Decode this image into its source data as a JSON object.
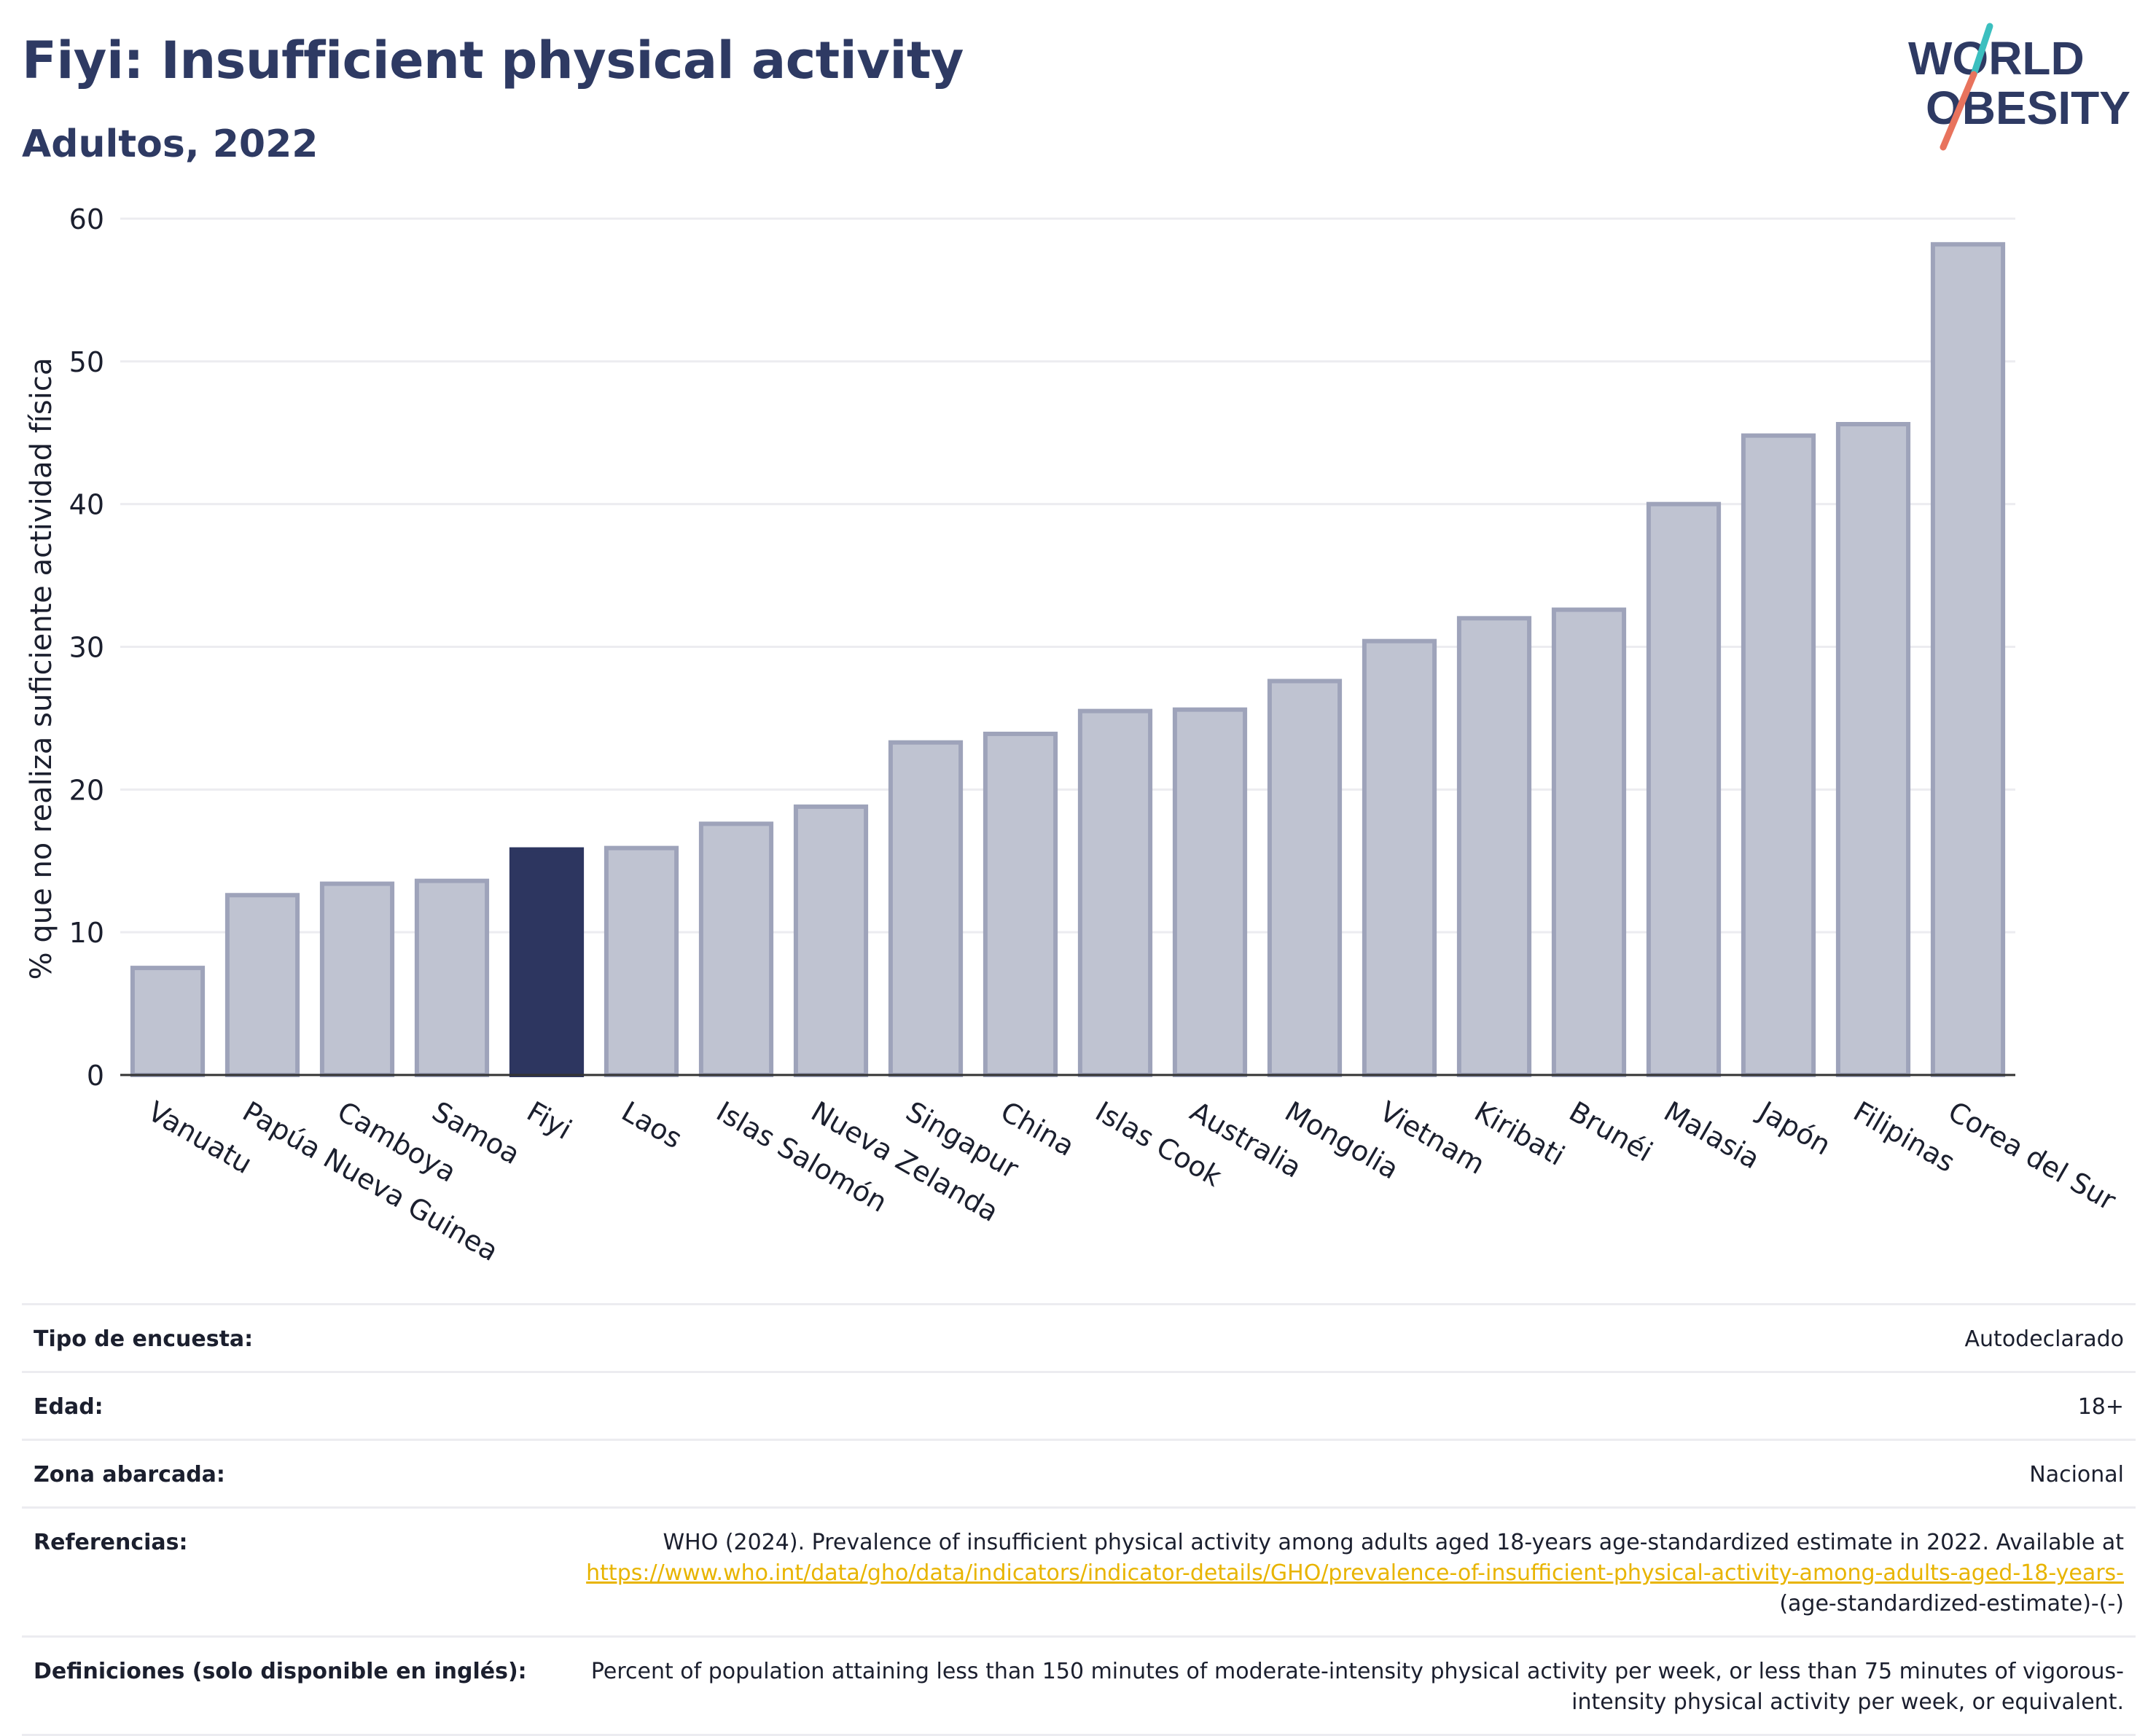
{
  "header": {
    "title": "Fiyi: Insufficient physical activity",
    "subtitle": "Adultos, 2022",
    "logo_line1": "WORLD",
    "logo_line2": "OBESITY"
  },
  "colors": {
    "bar": "#bfc3d1",
    "bar_border": "#9ea3ba",
    "highlight": "#2d3660",
    "text_dark": "#2e3a63",
    "link": "#e8b400",
    "logo_teal": "#3bbfbf",
    "logo_coral": "#e8735d"
  },
  "chart_data": {
    "type": "bar",
    "categories": [
      "Vanuatu",
      "Papúa Nueva Guinea",
      "Camboya",
      "Samoa",
      "Fiyi",
      "Laos",
      "Islas Salomón",
      "Nueva Zelanda",
      "Singapur",
      "China",
      "Islas Cook",
      "Australia",
      "Mongolia",
      "Vietnam",
      "Kiribati",
      "Brunéi",
      "Malasia",
      "Japón",
      "Filipinas",
      "Corea del Sur"
    ],
    "values": [
      7.5,
      12.6,
      13.4,
      13.6,
      15.8,
      15.9,
      17.6,
      18.8,
      23.3,
      23.9,
      25.5,
      25.6,
      27.6,
      30.4,
      32.0,
      32.6,
      40.0,
      44.8,
      45.6,
      58.2
    ],
    "highlight": "Fiyi",
    "ylabel": "% que no realiza suficiente actividad física",
    "xlabel": "",
    "ylim": [
      0,
      60
    ],
    "yticks": [
      0,
      10,
      20,
      30,
      40,
      50,
      60
    ],
    "grid": true
  },
  "info": {
    "survey_label": "Tipo de encuesta:",
    "survey_value": "Autodeclarado",
    "age_label": "Edad:",
    "age_value": "18+",
    "area_label": "Zona abarcada:",
    "area_value": "Nacional",
    "refs_label": "Referencias:",
    "refs_text": "WHO (2024). Prevalence of insufficient physical activity among adults aged 18-years age-standardized estimate in 2022. Available at",
    "refs_link": "https://www.who.int/data/gho/data/indicators/indicator-details/GHO/prevalence-of-insufficient-physical-activity-among-adults-aged-18-years-",
    "refs_tail": "(age-standardized-estimate)-(-)",
    "defs_label": "Definiciones (solo disponible en inglés):",
    "defs_value": "Percent of population attaining less than 150 minutes of moderate-intensity physical activity per week, or less than 75 minutes of vigorous-intensity physical activity per week, or equivalent."
  }
}
